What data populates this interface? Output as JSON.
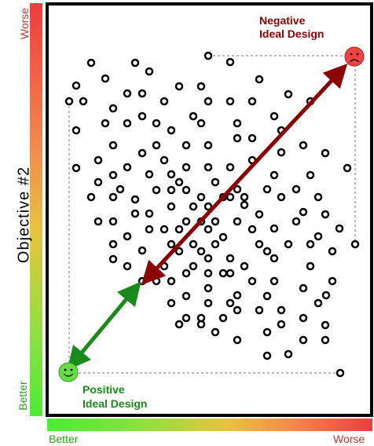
{
  "y_axis": {
    "label": "Objective #2",
    "top_tick": "Worse",
    "bottom_tick": "Better"
  },
  "x_axis": {
    "left_tick": "Better",
    "right_tick": "Worse"
  },
  "negative_ideal": {
    "line1": "Negative",
    "line2": "Ideal Design"
  },
  "positive_ideal": {
    "line1": "Positive",
    "line2": "Ideal Design"
  },
  "colors": {
    "negative": "#8b0000",
    "positive": "#1a8a1a",
    "face_bad": "#ee4444",
    "face_good": "#66dd44"
  }
}
